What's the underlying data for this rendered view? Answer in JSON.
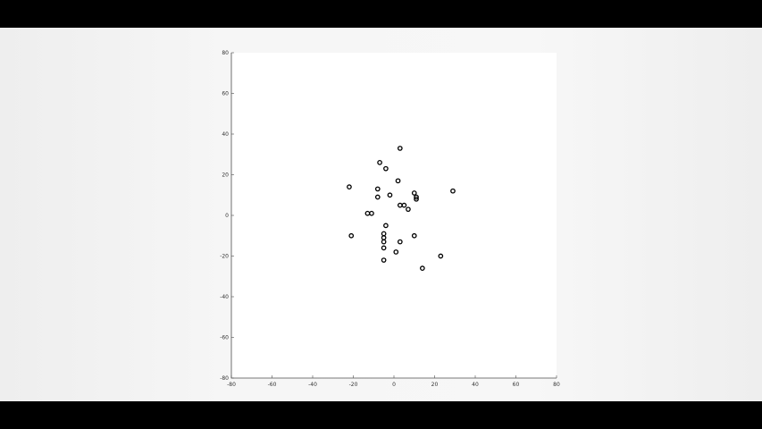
{
  "colors": {
    "frame": "#000000",
    "figure_bg": "#f3f3f3",
    "axes_bg": "#ffffff",
    "axis": "#4d4d4d",
    "marker": "#000000"
  },
  "chart_data": {
    "type": "scatter",
    "title": "",
    "xlabel": "",
    "ylabel": "",
    "xlim": [
      -80,
      80
    ],
    "ylim": [
      -80,
      80
    ],
    "grid": false,
    "xticks": [
      -80,
      -60,
      -40,
      -20,
      0,
      20,
      40,
      60,
      80
    ],
    "yticks": [
      -80,
      -60,
      -40,
      -20,
      0,
      20,
      40,
      60,
      80
    ],
    "xtick_labels": [
      "-80",
      "-60",
      "-40",
      "-20",
      "0",
      "20",
      "40",
      "60",
      "80"
    ],
    "ytick_labels": [
      "-80",
      "-60",
      "-40",
      "-20",
      "0",
      "20",
      "40",
      "60",
      "80"
    ],
    "marker": "o",
    "series": [
      {
        "name": "points",
        "x": [
          3,
          -7,
          -4,
          2,
          -22,
          -8,
          10,
          29,
          11,
          11,
          -2,
          -8,
          5,
          3,
          7,
          -13,
          -11,
          -4,
          -5,
          -5,
          -21,
          10,
          -5,
          3,
          -5,
          1,
          23,
          -5,
          14
        ],
        "y": [
          33,
          26,
          23,
          17,
          14,
          13,
          11,
          12,
          9,
          8,
          10,
          9,
          5,
          5,
          3,
          1,
          1,
          -5,
          -9,
          -11,
          -10,
          -10,
          -13,
          -13,
          -16,
          -18,
          -20,
          -22,
          -26
        ]
      }
    ]
  }
}
